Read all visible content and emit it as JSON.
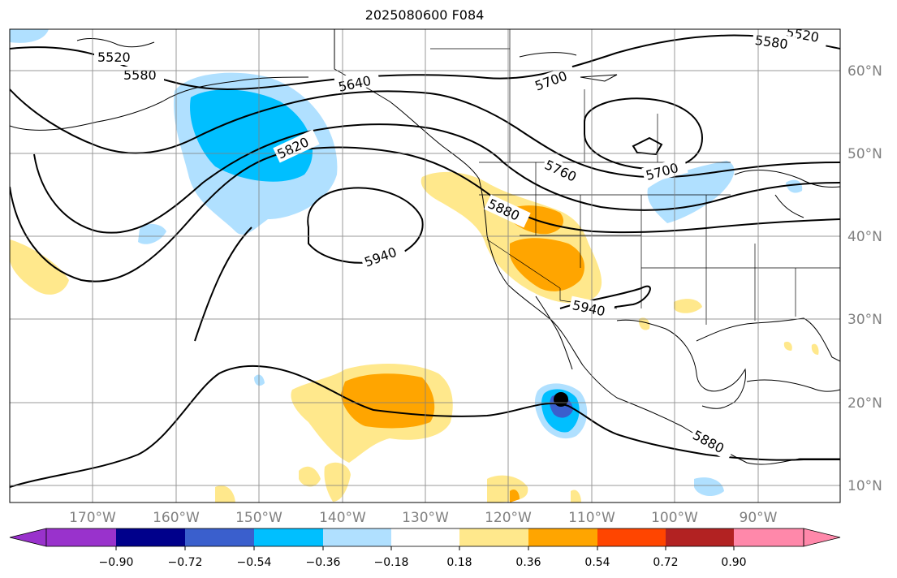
{
  "title": "2025080600 F084",
  "map": {
    "projection": "plate-carree",
    "lon_range": [
      -180,
      -80
    ],
    "lat_range": [
      8,
      65
    ],
    "lon_ticks": [
      "170°W",
      "160°W",
      "150°W",
      "140°W",
      "130°W",
      "120°W",
      "110°W",
      "100°W",
      "90°W"
    ],
    "lat_ticks": [
      "60°N",
      "50°N",
      "40°N",
      "30°N",
      "20°N",
      "10°N"
    ],
    "contour_labels": [
      "5520",
      "5580",
      "5640",
      "5700",
      "5760",
      "5820",
      "5880",
      "5940",
      "5520",
      "5580",
      "5700",
      "5700",
      "5760",
      "5880",
      "5940"
    ],
    "marker": "storm-center-dot"
  },
  "colorbar": {
    "ticks": [
      "−0.90",
      "−0.72",
      "−0.54",
      "−0.36",
      "−0.18",
      "0.18",
      "0.36",
      "0.54",
      "0.72",
      "0.90"
    ],
    "colors": [
      "#9932cc",
      "#00008b",
      "#3a5fcd",
      "#00bfff",
      "#b0e0ff",
      "#ffffff",
      "#ffe88c",
      "#ffa500",
      "#ff4500",
      "#b22222",
      "#ff88aa"
    ]
  }
}
